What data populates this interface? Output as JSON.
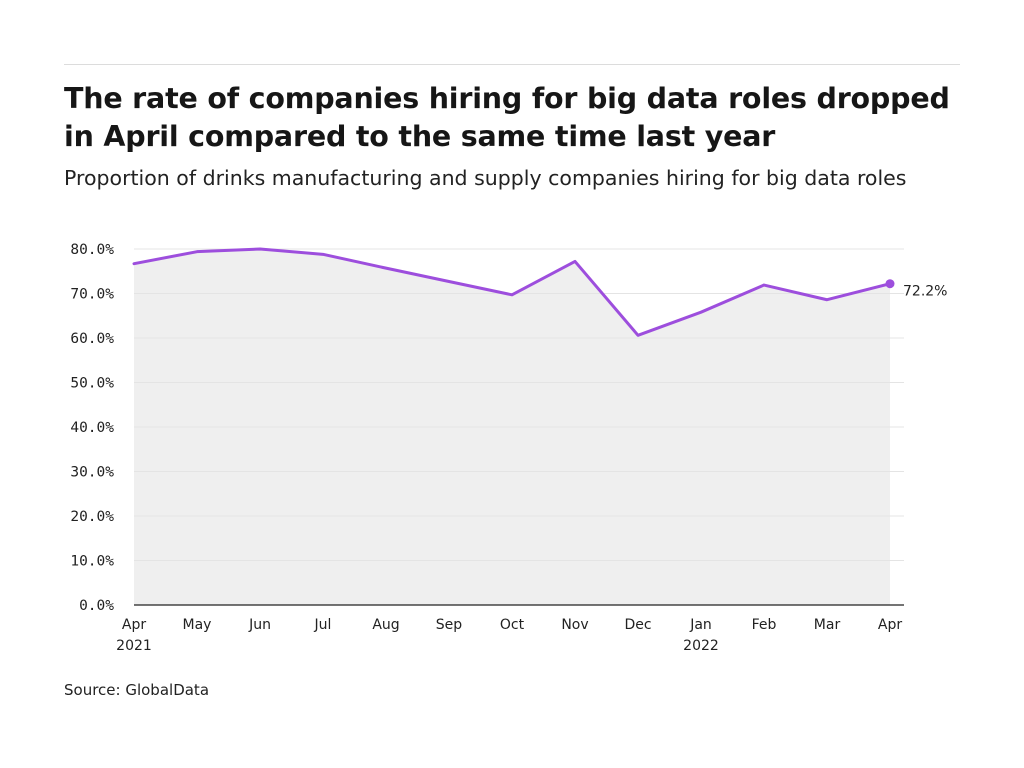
{
  "title": "The rate of companies hiring for big data roles dropped in April compared to the same time last year",
  "subtitle": "Proportion of drinks manufacturing and supply companies hiring for big data roles",
  "source": "Source: GlobalData",
  "colors": {
    "line": "#9d4edd",
    "area": "#efefef",
    "grid": "#e4e4e4",
    "axis": "#222222"
  },
  "chart_data": {
    "type": "area",
    "categories": [
      "Apr",
      "May",
      "Jun",
      "Jul",
      "Aug",
      "Sep",
      "Oct",
      "Nov",
      "Dec",
      "Jan",
      "Feb",
      "Mar",
      "Apr"
    ],
    "year_labels": [
      "2021",
      "",
      "",
      "",
      "",
      "",
      "",
      "",
      "",
      "2022",
      "",
      "",
      ""
    ],
    "values": [
      76.7,
      79.4,
      80.0,
      78.8,
      75.7,
      72.7,
      69.7,
      77.2,
      60.6,
      65.8,
      71.9,
      68.6,
      72.2
    ],
    "ylim": [
      0,
      80
    ],
    "yticks": [
      0,
      10,
      20,
      30,
      40,
      50,
      60,
      70,
      80
    ],
    "ytick_labels": [
      "0.0%",
      "10.0%",
      "20.0%",
      "30.0%",
      "40.0%",
      "50.0%",
      "60.0%",
      "70.0%",
      "80.0%"
    ],
    "end_label": "72.2%",
    "grid": true
  }
}
